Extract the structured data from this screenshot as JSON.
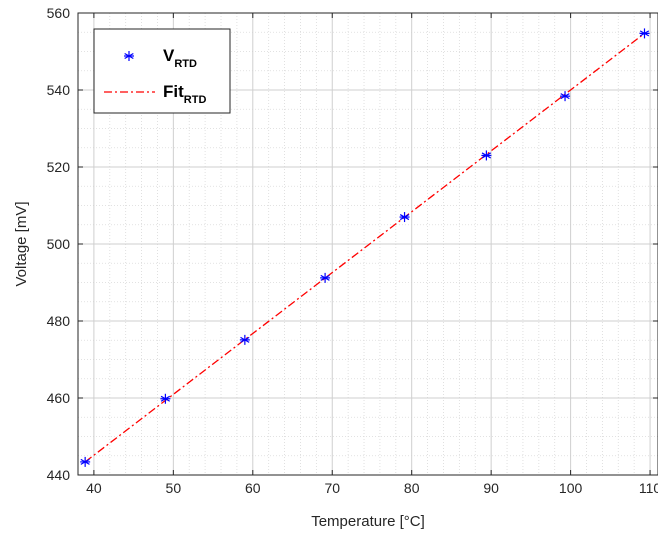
{
  "chart_data": {
    "type": "scatter",
    "title": "",
    "xlabel": "Temperature [°C]",
    "ylabel": "Voltage [mV]",
    "xlim": [
      38,
      111
    ],
    "ylim": [
      440,
      560
    ],
    "xticks": [
      40,
      50,
      60,
      70,
      80,
      90,
      100,
      110
    ],
    "yticks": [
      440,
      460,
      480,
      500,
      520,
      540,
      560
    ],
    "grid": true,
    "minor_grid": true,
    "legend_position": "top-left",
    "series": [
      {
        "name": "V",
        "name_subscript": "RTD",
        "style": "markers",
        "marker": "asterisk",
        "color": "#0000ff",
        "x": [
          38.9,
          49.0,
          59.0,
          69.1,
          79.1,
          89.4,
          99.3,
          109.3
        ],
        "y": [
          443.4,
          459.8,
          475.1,
          491.2,
          507.0,
          523.0,
          538.4,
          554.7
        ]
      },
      {
        "name": "Fit",
        "name_subscript": "RTD",
        "style": "dash-dot line",
        "color": "#ff0000",
        "x": [
          38.9,
          109.3
        ],
        "y": [
          443.4,
          554.7
        ]
      }
    ]
  }
}
